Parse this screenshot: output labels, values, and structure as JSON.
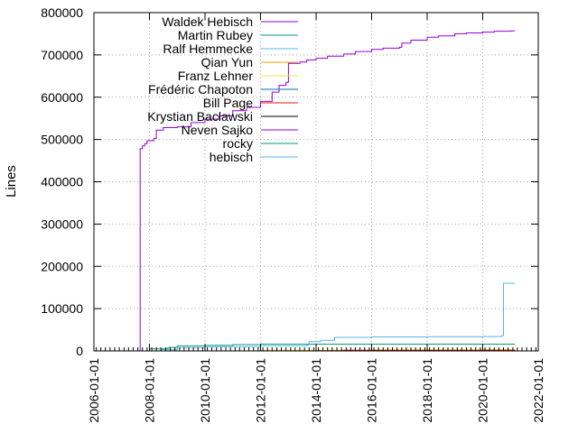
{
  "chart_data": {
    "type": "line",
    "ylabel": "Lines",
    "xlabel": "",
    "title": "",
    "ylim": [
      0,
      800000
    ],
    "xlim": [
      "2006-01-01",
      "2022-01-01"
    ],
    "y_ticks": [
      "0",
      "100000",
      "200000",
      "300000",
      "400000",
      "500000",
      "600000",
      "700000",
      "800000"
    ],
    "x_ticks": [
      "2006-01-01",
      "2008-01-01",
      "2010-01-01",
      "2012-01-01",
      "2014-01-01",
      "2016-01-01",
      "2018-01-01",
      "2020-01-01",
      "2022-01-01"
    ],
    "grid": true,
    "legend_position": "top-left inside",
    "series": [
      {
        "name": "Waldek Hebisch",
        "color": "#9400d3",
        "points": [
          [
            "2007-09-01",
            0
          ],
          [
            "2007-09-01",
            478000
          ],
          [
            "2007-10-01",
            485000
          ],
          [
            "2007-11-01",
            490000
          ],
          [
            "2007-12-01",
            497000
          ],
          [
            "2008-03-01",
            503000
          ],
          [
            "2008-04-01",
            522000
          ],
          [
            "2008-07-01",
            528000
          ],
          [
            "2009-01-01",
            530000
          ],
          [
            "2009-07-01",
            540000
          ],
          [
            "2010-01-01",
            548000
          ],
          [
            "2010-07-01",
            556000
          ],
          [
            "2011-01-01",
            568000
          ],
          [
            "2011-07-01",
            576000
          ],
          [
            "2012-01-01",
            590000
          ],
          [
            "2012-06-01",
            612000
          ],
          [
            "2012-09-01",
            628000
          ],
          [
            "2012-12-01",
            635000
          ],
          [
            "2013-01-01",
            638000
          ],
          [
            "2013-01-02",
            680000
          ],
          [
            "2013-06-01",
            683000
          ],
          [
            "2013-09-01",
            688000
          ],
          [
            "2014-01-01",
            692000
          ],
          [
            "2014-06-01",
            697000
          ],
          [
            "2015-01-01",
            702000
          ],
          [
            "2015-06-01",
            708000
          ],
          [
            "2016-01-01",
            713000
          ],
          [
            "2016-06-01",
            716000
          ],
          [
            "2017-01-01",
            718000
          ],
          [
            "2017-02-01",
            728000
          ],
          [
            "2017-06-01",
            735000
          ],
          [
            "2018-01-01",
            742000
          ],
          [
            "2018-06-01",
            745000
          ],
          [
            "2019-01-01",
            750000
          ],
          [
            "2019-06-01",
            752000
          ],
          [
            "2020-01-01",
            754000
          ],
          [
            "2020-06-01",
            756000
          ],
          [
            "2021-01-01",
            757000
          ],
          [
            "2021-03-01",
            757000
          ]
        ]
      },
      {
        "name": "Martin Rubey",
        "color": "#009e73",
        "points": [
          [
            "2007-12-01",
            0
          ],
          [
            "2008-01-01",
            5000
          ],
          [
            "2008-09-01",
            8000
          ],
          [
            "2009-01-01",
            12000
          ],
          [
            "2010-01-01",
            13000
          ],
          [
            "2011-01-01",
            15000
          ],
          [
            "2012-01-01",
            16000
          ],
          [
            "2014-01-01",
            16000
          ],
          [
            "2016-01-01",
            16000
          ],
          [
            "2018-01-01",
            16000
          ],
          [
            "2020-01-01",
            16000
          ],
          [
            "2021-03-01",
            16000
          ]
        ]
      },
      {
        "name": "Ralf Hemmecke",
        "color": "#56b4e9",
        "points": [
          [
            "2007-12-01",
            0
          ],
          [
            "2008-06-01",
            3000
          ],
          [
            "2009-01-01",
            8000
          ],
          [
            "2010-01-01",
            10000
          ],
          [
            "2012-01-01",
            12000
          ],
          [
            "2013-09-01",
            14000
          ],
          [
            "2013-10-01",
            22000
          ],
          [
            "2014-03-01",
            25000
          ],
          [
            "2014-09-01",
            32000
          ],
          [
            "2016-01-01",
            33000
          ],
          [
            "2018-01-01",
            33500
          ],
          [
            "2020-01-01",
            34000
          ],
          [
            "2020-09-01",
            36000
          ],
          [
            "2020-10-01",
            160000
          ],
          [
            "2021-03-01",
            160000
          ]
        ]
      },
      {
        "name": "Qian Yun",
        "color": "#e69f00",
        "points": [
          [
            "2018-06-01",
            0
          ],
          [
            "2019-01-01",
            2000
          ],
          [
            "2020-01-01",
            3000
          ],
          [
            "2021-03-01",
            3500
          ]
        ]
      },
      {
        "name": "Franz Lehner",
        "color": "#f0e442",
        "points": [
          [
            "2010-01-01",
            0
          ],
          [
            "2012-01-01",
            1500
          ],
          [
            "2016-01-01",
            2500
          ],
          [
            "2021-03-01",
            2800
          ]
        ]
      },
      {
        "name": "Frédéric Chapoton",
        "color": "#0072b2",
        "points": [
          [
            "2014-06-01",
            0
          ],
          [
            "2021-03-01",
            1200
          ]
        ]
      },
      {
        "name": "Bill Page",
        "color": "#e51e10",
        "points": [
          [
            "2008-01-01",
            0
          ],
          [
            "2014-01-01",
            500
          ],
          [
            "2015-01-01",
            1500
          ],
          [
            "2021-03-01",
            1600
          ]
        ]
      },
      {
        "name": "Krystian Baclawski",
        "color": "#000000",
        "points": [
          [
            "2016-06-01",
            0
          ],
          [
            "2021-03-01",
            400
          ]
        ]
      },
      {
        "name": "Neven Sajko",
        "color": "#9400d3",
        "points": [
          [
            "2019-06-01",
            0
          ],
          [
            "2021-03-01",
            300
          ]
        ]
      },
      {
        "name": "rocky",
        "color": "#009e73",
        "points": [
          [
            "2017-01-01",
            0
          ],
          [
            "2021-03-01",
            200
          ]
        ]
      },
      {
        "name": "hebisch",
        "color": "#56b4e9",
        "points": [
          [
            "2014-10-01",
            0
          ],
          [
            "2021-03-01",
            100
          ]
        ]
      }
    ]
  }
}
